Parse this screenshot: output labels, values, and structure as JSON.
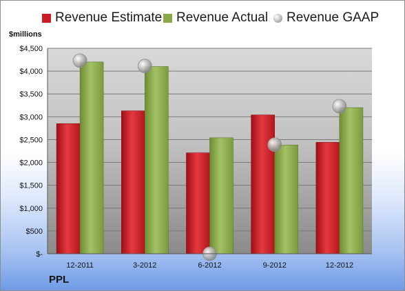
{
  "chart_data": {
    "type": "bar",
    "title": "",
    "ylabel": "$millions",
    "xlabel": "",
    "company": "PPL",
    "categories": [
      "12-2011",
      "3-2012",
      "6-2012",
      "9-2012",
      "12-2012"
    ],
    "series": [
      {
        "name": "Revenue Estimate",
        "type": "bar",
        "color": "#cc1b24",
        "values": [
          2850,
          3130,
          2210,
          3040,
          2440
        ]
      },
      {
        "name": "Revenue Actual",
        "type": "bar",
        "color": "#8aa84a",
        "values": [
          4200,
          4100,
          2540,
          2380,
          3200
        ]
      },
      {
        "name": "Revenue GAAP",
        "type": "marker",
        "color": "#b5b5b5",
        "values": [
          4230,
          4110,
          0,
          2390,
          3230
        ]
      }
    ],
    "ylim": [
      0,
      4500
    ],
    "yticks": [
      0,
      500,
      1000,
      1500,
      2000,
      2500,
      3000,
      3500,
      4000,
      4500
    ],
    "ytick_labels": [
      "$-",
      "$500",
      "$1,000",
      "$1,500",
      "$2,000",
      "$2,500",
      "$3,000",
      "$3,500",
      "$4,000",
      "$4,500"
    ],
    "grid": true,
    "legend_position": "top"
  }
}
